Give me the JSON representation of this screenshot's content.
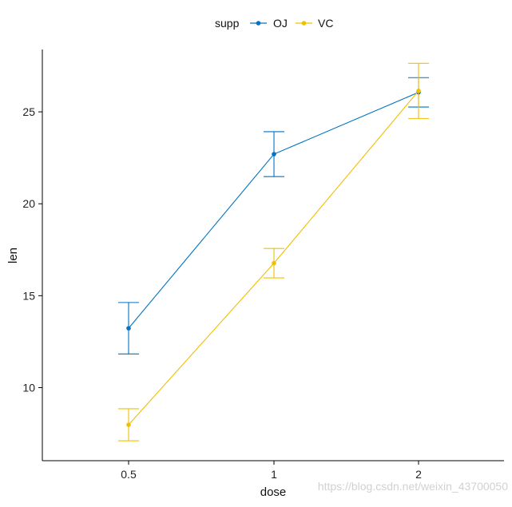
{
  "chart_data": {
    "type": "line",
    "xlabel": "dose",
    "ylabel": "len",
    "categories": [
      "0.5",
      "1",
      "2"
    ],
    "ylim": [
      6,
      28
    ],
    "yticks": [
      10,
      15,
      20,
      25
    ],
    "grid": false,
    "legend": {
      "title": "supp",
      "placement": "top",
      "entries": [
        "OJ",
        "VC"
      ]
    },
    "error_bars": true,
    "series": [
      {
        "name": "OJ",
        "color": "#0073C2",
        "values": [
          13.23,
          22.7,
          26.06
        ],
        "err_low": [
          11.83,
          21.48,
          25.26
        ],
        "err_high": [
          14.63,
          23.92,
          26.86
        ]
      },
      {
        "name": "VC",
        "color": "#EFC000",
        "values": [
          7.98,
          16.77,
          26.14
        ],
        "err_low": [
          7.11,
          15.97,
          24.64
        ],
        "err_high": [
          8.85,
          17.57,
          27.64
        ]
      }
    ]
  },
  "watermark": "https://blog.csdn.net/weixin_43700050"
}
